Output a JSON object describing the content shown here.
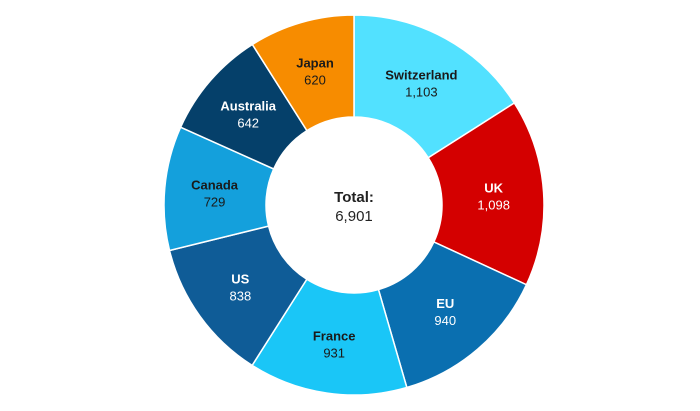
{
  "chart_data": {
    "type": "pie",
    "subtype": "donut",
    "center_label": "Total:",
    "center_value": "6,901",
    "slices": [
      {
        "name": "Switzerland",
        "value": 1103,
        "value_label": "1,103",
        "color": "#52e1ff",
        "text_color": "#1a1a1a"
      },
      {
        "name": "UK",
        "value": 1098,
        "value_label": "1,098",
        "color": "#d40000",
        "text_color": "#ffffff"
      },
      {
        "name": "EU",
        "value": 940,
        "value_label": "940",
        "color": "#0a6fb0",
        "text_color": "#ffffff"
      },
      {
        "name": "France",
        "value": 931,
        "value_label": "931",
        "color": "#1ac6f7",
        "text_color": "#1a1a1a"
      },
      {
        "name": "US",
        "value": 838,
        "value_label": "838",
        "color": "#0f5c97",
        "text_color": "#ffffff"
      },
      {
        "name": "Canada",
        "value": 729,
        "value_label": "729",
        "color": "#14a0dc",
        "text_color": "#1a1a1a"
      },
      {
        "name": "Australia",
        "value": 642,
        "value_label": "642",
        "color": "#05406a",
        "text_color": "#ffffff"
      },
      {
        "name": "Japan",
        "value": 620,
        "value_label": "620",
        "color": "#f78c00",
        "text_color": "#1a1a1a"
      }
    ]
  }
}
